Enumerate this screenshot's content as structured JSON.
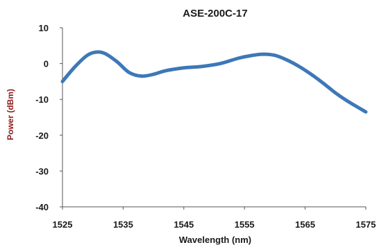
{
  "chart_data": {
    "type": "line",
    "title": "ASE-200C-17",
    "xlabel": "Wavelength  (nm)",
    "ylabel": "Power  (dBm)",
    "xlim": [
      1525,
      1575
    ],
    "ylim": [
      -40,
      10
    ],
    "x_ticks": [
      "1525",
      "1535",
      "1545",
      "1555",
      "1565",
      "1575"
    ],
    "y_ticks": [
      "10",
      "0",
      "-10",
      "-20",
      "-30",
      "-40"
    ],
    "grid": false,
    "legend": "none",
    "series": [
      {
        "color": "#3d78b8",
        "x": [
          1525,
          1527,
          1529,
          1530.5,
          1532,
          1534,
          1536,
          1538,
          1540,
          1542,
          1545,
          1548,
          1551,
          1554,
          1556,
          1558,
          1560,
          1562,
          1564,
          1566,
          1568,
          1570,
          1572,
          1575
        ],
        "y": [
          -5,
          -1,
          2.2,
          3.2,
          2.8,
          0.5,
          -2.5,
          -3.5,
          -3,
          -2,
          -1.2,
          -0.8,
          0,
          1.5,
          2.2,
          2.6,
          2.3,
          1,
          -0.8,
          -3,
          -5.5,
          -8.2,
          -10.5,
          -13.5
        ]
      }
    ]
  }
}
